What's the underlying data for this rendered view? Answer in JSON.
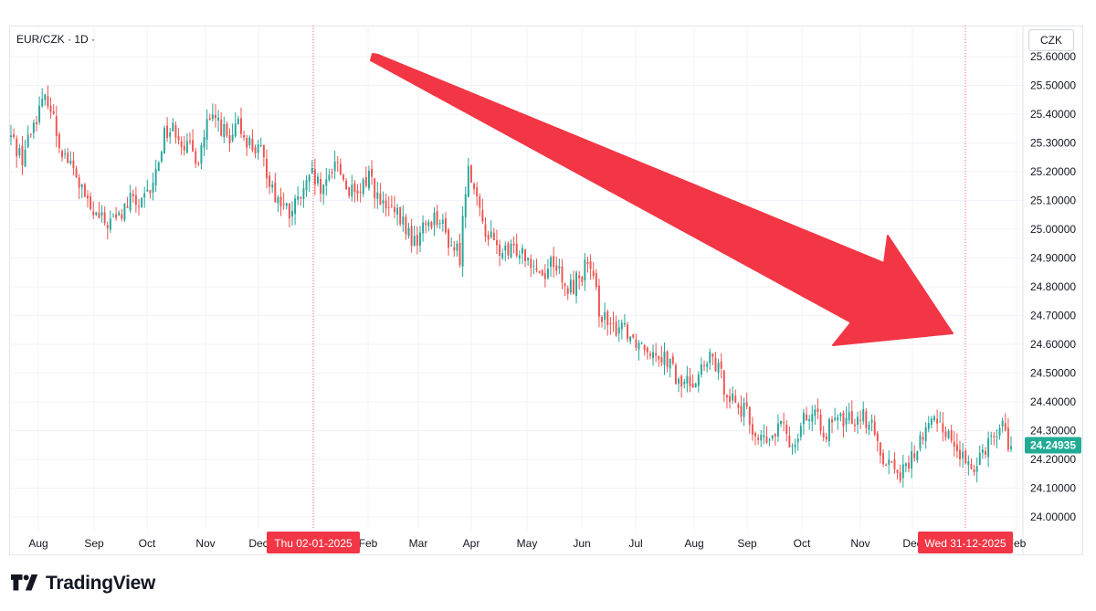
{
  "header": {
    "symbol": "EUR/CZK · 1D ·",
    "currency": "CZK"
  },
  "brand": {
    "name": "TradingView",
    "logo_icon": "tradingview-logo-icon"
  },
  "colors": {
    "up": "#26a69a",
    "down": "#ef5350",
    "arrow": "#f23645",
    "price_badge": "#22ab94",
    "date_badge": "#f23645"
  },
  "chart_data": {
    "type": "candlestick",
    "pair": "EUR/CZK",
    "timeframe": "1D",
    "y_ticks": [
      24.0,
      24.1,
      24.2,
      24.3,
      24.4,
      24.5,
      24.6,
      24.7,
      24.8,
      24.9,
      25.0,
      25.1,
      25.2,
      25.3,
      25.4,
      25.5,
      25.6
    ],
    "y_tick_labels": [
      "24.00000",
      "24.10000",
      "24.20000",
      "24.30000",
      "24.40000",
      "24.50000",
      "24.60000",
      "24.70000",
      "24.80000",
      "24.90000",
      "25.00000",
      "25.10000",
      "25.20000",
      "25.30000",
      "25.40000",
      "25.50000",
      "25.60000"
    ],
    "ylim": [
      23.95,
      25.62
    ],
    "x_months": [
      "Aug",
      "Sep",
      "Oct",
      "Nov",
      "Dec",
      "Jan",
      "Feb",
      "Mar",
      "Apr",
      "May",
      "Jun",
      "Jul",
      "Aug",
      "Sep",
      "Oct",
      "Nov",
      "Dec",
      "Feb"
    ],
    "close_path": [
      [
        0,
        25.32
      ],
      [
        4,
        25.25
      ],
      [
        9,
        25.4
      ],
      [
        13,
        25.46
      ],
      [
        17,
        25.3
      ],
      [
        23,
        25.18
      ],
      [
        28,
        25.06
      ],
      [
        33,
        25.02
      ],
      [
        38,
        25.04
      ],
      [
        42,
        25.1
      ],
      [
        46,
        25.08
      ],
      [
        50,
        25.15
      ],
      [
        54,
        25.34
      ],
      [
        58,
        25.35
      ],
      [
        62,
        25.28
      ],
      [
        66,
        25.25
      ],
      [
        69,
        25.36
      ],
      [
        73,
        25.38
      ],
      [
        77,
        25.29
      ],
      [
        80,
        25.36
      ],
      [
        84,
        25.3
      ],
      [
        88,
        25.26
      ],
      [
        93,
        25.12
      ],
      [
        98,
        25.05
      ],
      [
        102,
        25.11
      ],
      [
        106,
        25.18
      ],
      [
        110,
        25.12
      ],
      [
        114,
        25.25
      ],
      [
        118,
        25.15
      ],
      [
        122,
        25.1
      ],
      [
        126,
        25.2
      ],
      [
        130,
        25.08
      ],
      [
        134,
        25.06
      ],
      [
        138,
        25.02
      ],
      [
        142,
        24.95
      ],
      [
        146,
        25.02
      ],
      [
        150,
        25.05
      ],
      [
        154,
        24.96
      ],
      [
        158,
        24.91
      ],
      [
        161,
        25.25
      ],
      [
        164,
        25.08
      ],
      [
        167,
        25.0
      ],
      [
        171,
        24.93
      ],
      [
        175,
        24.91
      ],
      [
        179,
        24.94
      ],
      [
        183,
        24.9
      ],
      [
        187,
        24.84
      ],
      [
        191,
        24.9
      ],
      [
        195,
        24.78
      ],
      [
        199,
        24.82
      ],
      [
        203,
        24.88
      ],
      [
        207,
        24.73
      ],
      [
        211,
        24.64
      ],
      [
        215,
        24.68
      ],
      [
        219,
        24.62
      ],
      [
        223,
        24.6
      ],
      [
        227,
        24.58
      ],
      [
        231,
        24.55
      ],
      [
        235,
        24.46
      ],
      [
        239,
        24.47
      ],
      [
        243,
        24.51
      ],
      [
        247,
        24.55
      ],
      [
        251,
        24.46
      ],
      [
        255,
        24.4
      ],
      [
        259,
        24.35
      ],
      [
        263,
        24.27
      ],
      [
        267,
        24.26
      ],
      [
        271,
        24.32
      ],
      [
        275,
        24.25
      ],
      [
        279,
        24.36
      ],
      [
        283,
        24.34
      ],
      [
        287,
        24.3
      ],
      [
        291,
        24.33
      ],
      [
        295,
        24.34
      ],
      [
        299,
        24.36
      ],
      [
        302,
        24.33
      ],
      [
        306,
        24.23
      ],
      [
        310,
        24.18
      ],
      [
        314,
        24.15
      ],
      [
        318,
        24.22
      ],
      [
        322,
        24.3
      ],
      [
        326,
        24.35
      ],
      [
        329,
        24.3
      ],
      [
        333,
        24.24
      ],
      [
        337,
        24.16
      ],
      [
        341,
        24.22
      ],
      [
        345,
        24.28
      ],
      [
        349,
        24.32
      ],
      [
        352,
        24.24
      ]
    ],
    "candle_count": 353,
    "last_price": 24.24935,
    "last_price_label": "24.24935",
    "crosshair_dates": [
      "Thu 02-01-2025",
      "Wed 31-12-2025"
    ],
    "annotation": "downward-trend-arrow",
    "grid": true
  }
}
